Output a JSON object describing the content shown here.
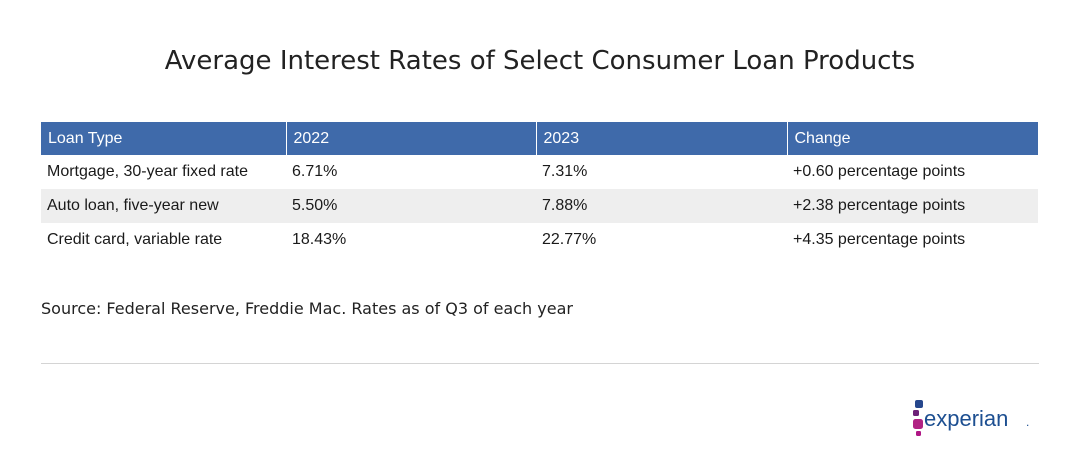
{
  "title": "Average Interest Rates of Select Consumer Loan Products",
  "table": {
    "headers": [
      "Loan Type",
      "2022",
      "2023",
      "Change"
    ],
    "rows": [
      [
        "Mortgage, 30-year fixed rate",
        "6.71%",
        "7.31%",
        "+0.60 percentage points"
      ],
      [
        "Auto loan, five-year new",
        "5.50%",
        "7.88%",
        "+2.38 percentage points"
      ],
      [
        "Credit card, variable rate",
        "18.43%",
        "22.77%",
        "+4.35 percentage points"
      ]
    ]
  },
  "source": "Source: Federal Reserve, Freddie Mac. Rates as of Q3 of each year",
  "logo": {
    "text": "experian",
    "trademark": ".",
    "colors": {
      "text": "#1d4f91",
      "dot_blue": "#26478d",
      "dot_purple": "#6d2077",
      "dot_magenta": "#b12384",
      "dot_pink": "#af1685"
    }
  },
  "colors": {
    "header_bg": "#3f6aaa",
    "row_alt_bg": "#eeeeee",
    "divider": "#d4d4d4"
  }
}
